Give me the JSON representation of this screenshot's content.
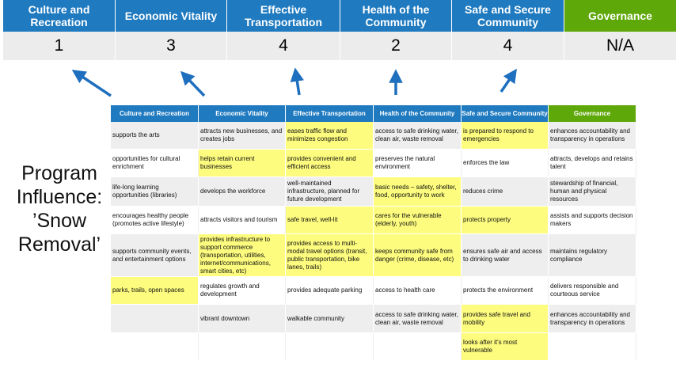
{
  "summary": {
    "headers": [
      "Culture and Recreation",
      "Economic Vitality",
      "Effective Transportation",
      "Health of the Community",
      "Safe and Secure Community",
      "Governance"
    ],
    "values": [
      "1",
      "3",
      "4",
      "2",
      "4",
      "N/A"
    ]
  },
  "side_label": [
    "Program",
    "Influence:",
    "’Snow",
    "Removal’"
  ],
  "colors": {
    "header_blue": "#1f7ac0",
    "governance_green": "#5fa80a",
    "highlight_yellow": "#fdfc7e",
    "arrow_blue": "#1f6fbf"
  },
  "table": {
    "headers": [
      "Culture and Recreation",
      "Economic Vitality",
      "Effective Transportation",
      "Health of the Community",
      "Safe and Secure Community",
      "Governance"
    ],
    "rows": [
      [
        "supports the arts",
        "attracts new businesses, and creates jobs",
        "eases traffic flow and minimizes congestion",
        "access to safe drinking water, clean air, waste removal",
        "is prepared to respond to emergencies",
        "enhances accountability and transparency in operations"
      ],
      [
        "opportunities for cultural enrichment",
        "helps retain current businesses",
        "provides convenient and efficient access",
        "preserves the natural environment",
        "enforces the law",
        "attracts, develops and retains talent"
      ],
      [
        "life-long learning opportunities (libraries)",
        "develops the workforce",
        "well-maintained infrastructure, planned for future development",
        "basic needs – safety, shelter, food, opportunity to work",
        "reduces crime",
        "stewardship of financial, human and physical resources"
      ],
      [
        "encourages healthy people (promotes active lifestyle)",
        "attracts visitors and tourism",
        "safe travel, well-lit",
        "cares for the vulnerable (elderly, youth)",
        "protects property",
        "assists and supports decision makers"
      ],
      [
        "supports community events, and entertainment options",
        "provides infrastructure to support commerce (transportation, utilities, internet/communications, smart cities, etc)",
        "provides access to multi-modal travel options (transit, public transportation, bike lanes, trails)",
        "keeps community safe from danger (crime, disease, etc)",
        "ensures safe air and access to drinking water",
        "maintains regulatory compliance"
      ],
      [
        "parks, trails, open spaces",
        "regulates growth and development",
        "provides adequate parking",
        "access to health care",
        "protects the environment",
        "delivers responsible and courteous service"
      ],
      [
        "",
        "vibrant downtown",
        "walkable community",
        "access to safe drinking water, clean air, waste removal",
        "provides safe travel and mobility",
        "enhances accountability and transparency in operations"
      ],
      [
        "",
        "",
        "",
        "",
        "looks after it's most vulnerable",
        ""
      ]
    ],
    "highlighted": [
      [
        2,
        4
      ],
      [
        1,
        2
      ],
      [
        3
      ],
      [
        2,
        3,
        4
      ],
      [
        1,
        2,
        3
      ],
      [
        0
      ],
      [
        4
      ],
      [
        4
      ]
    ]
  }
}
